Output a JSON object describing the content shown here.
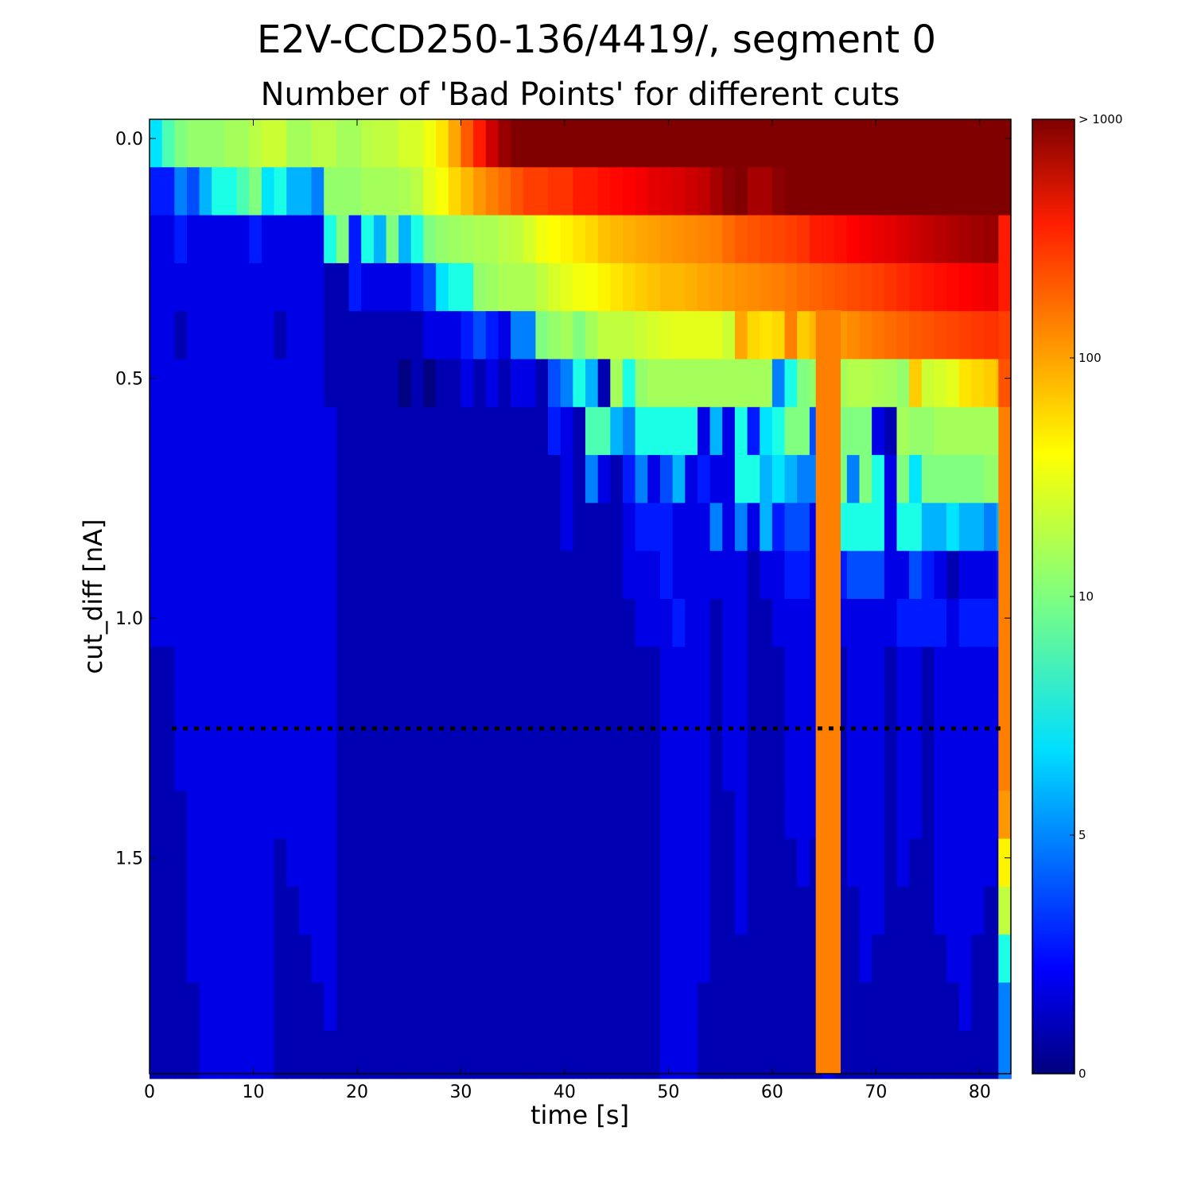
{
  "chart_data": {
    "type": "heatmap",
    "title": "E2V-CCD250-136/4419/, segment 0",
    "subtitle": "Number of 'Bad Points' for different cuts",
    "xlabel": "time [s]",
    "ylabel": "cut_diff [nA]",
    "xlim": [
      0,
      83
    ],
    "ylim": [
      1.95,
      -0.04
    ],
    "x_ticks": [
      "0",
      "10",
      "20",
      "30",
      "40",
      "50",
      "60",
      "70",
      "80"
    ],
    "y_ticks": [
      "0.0",
      "0.5",
      "1.0",
      "1.5"
    ],
    "x_bin_width": 1.2,
    "y_bin_width": 0.1,
    "y_bin_start": -0.04,
    "colorscale": "jet",
    "colorbar": {
      "scale": "log",
      "range": [
        0,
        1000
      ],
      "ticks": [
        "0",
        "5",
        "10",
        "100",
        "> 1000"
      ]
    },
    "cut_line": {
      "y": 1.23,
      "style": "dotted",
      "color": "#000000"
    },
    "rows": [
      [
        7,
        9,
        10,
        12,
        12,
        12,
        14,
        14,
        17,
        20,
        20,
        14,
        14,
        17,
        17,
        14,
        14,
        17,
        18,
        18,
        22,
        22,
        28,
        40,
        70,
        140,
        250,
        500,
        800,
        1000,
        1000,
        1000,
        1000,
        1000,
        1000,
        1000,
        1000,
        1000,
        1000,
        1000,
        1000,
        1000,
        1000,
        1000,
        1000,
        1000,
        1000,
        1000,
        1000,
        1000,
        1000,
        1000,
        1000,
        1000,
        1000,
        1000,
        1000,
        1000,
        1000,
        1000,
        1000,
        1000,
        1000,
        1000,
        1000,
        1000,
        1000,
        1000,
        1000,
        1000
      ],
      [
        3,
        3,
        5,
        4,
        6,
        8,
        8,
        9,
        10,
        7,
        8,
        6,
        6,
        5,
        12,
        12,
        12,
        14,
        14,
        14,
        15,
        17,
        25,
        30,
        45,
        60,
        80,
        100,
        120,
        150,
        180,
        180,
        200,
        200,
        250,
        250,
        280,
        300,
        320,
        350,
        400,
        420,
        450,
        500,
        550,
        700,
        900,
        1000,
        700,
        700,
        900,
        1000,
        1000,
        1000,
        1000,
        1000,
        1000,
        1000,
        1000,
        1000,
        1000,
        1000,
        1000,
        1000,
        1000,
        1000,
        1000,
        1000,
        1000,
        1000
      ],
      [
        2,
        2,
        3,
        2,
        2,
        2,
        2,
        2,
        3,
        2,
        2,
        2,
        2,
        2,
        8,
        10,
        3,
        8,
        6,
        10,
        6,
        8,
        10,
        12,
        13,
        14,
        15,
        15,
        17,
        18,
        22,
        28,
        32,
        35,
        40,
        45,
        55,
        60,
        65,
        70,
        75,
        80,
        85,
        90,
        95,
        100,
        120,
        140,
        150,
        160,
        170,
        180,
        200,
        250,
        260,
        280,
        320,
        350,
        380,
        400,
        450,
        500,
        550,
        600,
        650,
        700,
        750,
        800,
        850,
        900
      ],
      [
        2,
        2,
        2,
        2,
        2,
        2,
        2,
        2,
        2,
        2,
        2,
        2,
        2,
        2,
        1,
        1,
        3,
        2,
        2,
        2,
        2,
        3,
        4,
        7,
        8,
        8,
        12,
        13,
        15,
        15,
        15,
        18,
        22,
        25,
        28,
        30,
        35,
        40,
        45,
        50,
        55,
        60,
        60,
        65,
        70,
        75,
        80,
        85,
        90,
        95,
        100,
        110,
        120,
        130,
        140,
        150,
        160,
        170,
        180,
        200,
        220,
        240,
        260,
        280,
        300,
        320,
        340,
        360,
        380,
        400
      ],
      [
        2,
        2,
        1,
        2,
        2,
        2,
        2,
        2,
        2,
        2,
        1,
        2,
        2,
        2,
        1,
        1,
        1,
        1,
        1,
        1,
        1,
        1,
        2,
        2,
        2,
        3,
        4,
        3,
        2,
        5,
        5,
        10,
        12,
        14,
        10,
        14,
        18,
        18,
        18,
        20,
        22,
        24,
        25,
        25,
        25,
        25,
        20,
        70,
        45,
        40,
        45,
        100,
        50,
        60,
        70,
        80,
        90,
        100,
        110,
        120,
        130,
        140,
        150,
        160,
        170,
        180,
        190,
        200,
        210,
        220
      ],
      [
        2,
        2,
        2,
        2,
        2,
        2,
        2,
        2,
        2,
        2,
        2,
        2,
        2,
        2,
        1,
        1,
        1,
        1,
        1,
        1,
        0,
        1,
        0,
        1,
        1,
        2,
        1,
        2,
        1,
        2,
        2,
        1,
        4,
        5,
        8,
        6,
        1,
        14,
        8,
        12,
        14,
        14,
        14,
        14,
        14,
        14,
        14,
        14,
        14,
        14,
        5,
        8,
        10,
        12,
        14,
        14,
        16,
        16,
        15,
        14,
        12,
        50,
        20,
        22,
        25,
        40,
        45,
        50,
        60,
        70
      ],
      [
        2,
        2,
        2,
        2,
        2,
        2,
        2,
        2,
        2,
        2,
        2,
        2,
        2,
        2,
        2,
        1,
        1,
        1,
        1,
        1,
        1,
        1,
        1,
        1,
        1,
        1,
        1,
        1,
        1,
        1,
        1,
        1,
        3,
        2,
        1,
        9,
        9,
        6,
        5,
        8,
        8,
        8,
        8,
        8,
        2,
        6,
        2,
        8,
        3,
        7,
        8,
        10,
        10,
        4,
        8,
        10,
        10,
        10,
        2,
        1,
        14,
        12,
        12,
        14,
        14,
        14,
        14,
        14,
        14,
        14
      ],
      [
        2,
        2,
        2,
        2,
        2,
        2,
        2,
        2,
        2,
        2,
        2,
        2,
        2,
        2,
        2,
        1,
        1,
        1,
        1,
        1,
        1,
        1,
        1,
        1,
        1,
        1,
        1,
        1,
        1,
        1,
        1,
        1,
        1,
        2,
        1,
        5,
        2,
        1,
        3,
        5,
        2,
        4,
        6,
        2,
        3,
        2,
        2,
        8,
        8,
        6,
        7,
        6,
        5,
        5,
        10,
        10,
        5,
        10,
        8,
        2,
        10,
        7,
        10,
        10,
        10,
        10,
        10,
        12,
        12,
        14
      ],
      [
        2,
        2,
        2,
        2,
        2,
        2,
        2,
        2,
        2,
        2,
        2,
        2,
        2,
        2,
        2,
        1,
        1,
        1,
        1,
        1,
        1,
        1,
        1,
        1,
        1,
        1,
        1,
        1,
        1,
        1,
        1,
        1,
        1,
        2,
        1,
        1,
        1,
        1,
        2,
        3,
        3,
        3,
        2,
        2,
        2,
        5,
        2,
        5,
        2,
        6,
        3,
        4,
        4,
        2,
        4,
        8,
        8,
        8,
        8,
        2,
        8,
        8,
        6,
        6,
        7,
        6,
        6,
        5,
        6,
        4
      ],
      [
        2,
        2,
        2,
        2,
        2,
        2,
        2,
        2,
        2,
        2,
        2,
        2,
        2,
        2,
        2,
        1,
        1,
        1,
        1,
        1,
        1,
        1,
        1,
        1,
        1,
        1,
        1,
        1,
        1,
        1,
        1,
        1,
        1,
        1,
        1,
        1,
        1,
        1,
        2,
        2,
        2,
        3,
        2,
        2,
        2,
        2,
        2,
        2,
        1,
        2,
        2,
        3,
        3,
        2,
        4,
        3,
        4,
        4,
        4,
        2,
        2,
        4,
        3,
        2,
        1,
        2,
        2,
        2,
        3,
        5
      ],
      [
        2,
        2,
        2,
        2,
        2,
        2,
        2,
        2,
        2,
        2,
        2,
        2,
        2,
        2,
        2,
        1,
        1,
        1,
        1,
        1,
        1,
        1,
        1,
        1,
        1,
        1,
        1,
        1,
        1,
        1,
        1,
        1,
        1,
        1,
        1,
        1,
        1,
        1,
        1,
        2,
        2,
        2,
        3,
        2,
        2,
        1,
        2,
        2,
        1,
        1,
        2,
        2,
        2,
        2,
        2,
        2,
        2,
        2,
        2,
        2,
        3,
        3,
        3,
        3,
        2,
        3,
        3,
        3,
        3,
        4
      ],
      [
        1,
        1,
        2,
        2,
        2,
        2,
        2,
        2,
        2,
        2,
        2,
        2,
        2,
        2,
        2,
        1,
        1,
        1,
        1,
        1,
        1,
        1,
        1,
        1,
        1,
        1,
        1,
        1,
        1,
        1,
        1,
        1,
        1,
        1,
        1,
        1,
        1,
        1,
        1,
        1,
        1,
        2,
        2,
        2,
        2,
        1,
        2,
        2,
        1,
        1,
        1,
        2,
        2,
        2,
        2,
        1,
        2,
        2,
        2,
        1,
        2,
        2,
        1,
        2,
        2,
        2,
        2,
        2,
        2,
        3
      ],
      [
        1,
        1,
        2,
        2,
        2,
        2,
        2,
        2,
        2,
        2,
        2,
        2,
        2,
        2,
        2,
        1,
        1,
        1,
        1,
        1,
        1,
        1,
        1,
        1,
        1,
        1,
        1,
        1,
        1,
        1,
        1,
        1,
        1,
        1,
        1,
        1,
        1,
        1,
        1,
        1,
        1,
        2,
        2,
        2,
        2,
        1,
        2,
        2,
        1,
        1,
        1,
        2,
        2,
        2,
        2,
        1,
        2,
        2,
        2,
        1,
        2,
        2,
        1,
        2,
        2,
        2,
        2,
        2,
        2,
        2
      ],
      [
        1,
        1,
        2,
        2,
        2,
        2,
        2,
        2,
        2,
        2,
        2,
        2,
        2,
        2,
        2,
        1,
        1,
        1,
        1,
        1,
        1,
        1,
        1,
        1,
        1,
        1,
        1,
        1,
        1,
        1,
        1,
        1,
        1,
        1,
        1,
        1,
        1,
        1,
        1,
        1,
        1,
        2,
        2,
        2,
        2,
        1,
        2,
        2,
        1,
        1,
        1,
        2,
        2,
        2,
        2,
        1,
        2,
        2,
        2,
        1,
        2,
        2,
        1,
        2,
        2,
        2,
        2,
        2,
        2,
        2
      ],
      [
        1,
        1,
        1,
        2,
        2,
        2,
        2,
        2,
        2,
        2,
        2,
        2,
        2,
        2,
        2,
        1,
        1,
        1,
        1,
        1,
        1,
        1,
        1,
        1,
        1,
        1,
        1,
        1,
        1,
        1,
        1,
        1,
        1,
        1,
        1,
        1,
        1,
        1,
        1,
        1,
        1,
        2,
        2,
        2,
        2,
        1,
        1,
        2,
        1,
        1,
        1,
        2,
        2,
        2,
        2,
        1,
        2,
        2,
        2,
        1,
        2,
        2,
        1,
        2,
        2,
        2,
        2,
        2,
        2,
        2
      ],
      [
        1,
        1,
        1,
        2,
        2,
        2,
        2,
        2,
        2,
        2,
        1,
        2,
        2,
        2,
        2,
        1,
        1,
        1,
        1,
        1,
        1,
        1,
        1,
        1,
        1,
        1,
        1,
        1,
        1,
        1,
        1,
        1,
        1,
        1,
        1,
        1,
        1,
        1,
        1,
        1,
        1,
        2,
        2,
        2,
        2,
        1,
        1,
        2,
        1,
        1,
        1,
        1,
        2,
        1,
        2,
        1,
        2,
        2,
        2,
        1,
        2,
        1,
        1,
        2,
        2,
        2,
        2,
        2,
        1,
        2
      ],
      [
        1,
        1,
        1,
        2,
        2,
        2,
        2,
        2,
        2,
        2,
        1,
        1,
        2,
        2,
        2,
        1,
        1,
        1,
        1,
        1,
        1,
        1,
        1,
        1,
        1,
        1,
        1,
        1,
        1,
        1,
        1,
        1,
        1,
        1,
        1,
        1,
        1,
        1,
        1,
        1,
        1,
        2,
        2,
        2,
        2,
        1,
        1,
        2,
        1,
        1,
        1,
        1,
        1,
        1,
        2,
        1,
        1,
        2,
        2,
        1,
        1,
        1,
        1,
        2,
        2,
        2,
        2,
        1,
        1,
        2
      ],
      [
        1,
        1,
        1,
        2,
        2,
        2,
        2,
        2,
        2,
        2,
        1,
        1,
        1,
        2,
        2,
        1,
        1,
        1,
        1,
        1,
        1,
        1,
        1,
        1,
        1,
        1,
        1,
        1,
        1,
        1,
        1,
        1,
        1,
        1,
        1,
        1,
        1,
        1,
        1,
        1,
        1,
        2,
        2,
        2,
        2,
        1,
        1,
        1,
        1,
        1,
        1,
        1,
        1,
        1,
        2,
        1,
        1,
        2,
        1,
        1,
        1,
        1,
        1,
        1,
        2,
        2,
        1,
        1,
        1,
        2
      ],
      [
        1,
        1,
        1,
        1,
        2,
        2,
        2,
        2,
        2,
        2,
        1,
        1,
        1,
        1,
        2,
        1,
        1,
        1,
        1,
        1,
        1,
        1,
        1,
        1,
        1,
        1,
        1,
        1,
        1,
        1,
        1,
        1,
        1,
        1,
        1,
        1,
        1,
        1,
        1,
        1,
        1,
        2,
        2,
        2,
        1,
        1,
        1,
        1,
        1,
        1,
        1,
        1,
        1,
        1,
        2,
        1,
        1,
        1,
        1,
        1,
        1,
        1,
        1,
        1,
        1,
        2,
        1,
        1,
        1,
        2
      ],
      [
        1,
        1,
        1,
        1,
        2,
        2,
        2,
        2,
        2,
        2,
        1,
        1,
        1,
        1,
        1,
        1,
        1,
        1,
        1,
        1,
        1,
        1,
        1,
        1,
        1,
        1,
        1,
        1,
        1,
        1,
        1,
        1,
        1,
        1,
        1,
        1,
        1,
        1,
        1,
        1,
        1,
        2,
        2,
        2,
        1,
        1,
        1,
        1,
        1,
        1,
        1,
        1,
        1,
        1,
        2,
        1,
        1,
        1,
        1,
        1,
        1,
        1,
        1,
        1,
        1,
        1,
        1,
        1,
        1,
        2
      ]
    ],
    "vertical_band": {
      "x_start": 64.2,
      "x_end": 66.6,
      "value": 100
    },
    "right_edge_column": [
      1000,
      1000,
      250,
      250,
      180,
      150,
      100,
      100,
      100,
      100,
      100,
      100,
      100,
      100,
      80,
      35,
      18,
      8,
      5,
      5
    ]
  }
}
